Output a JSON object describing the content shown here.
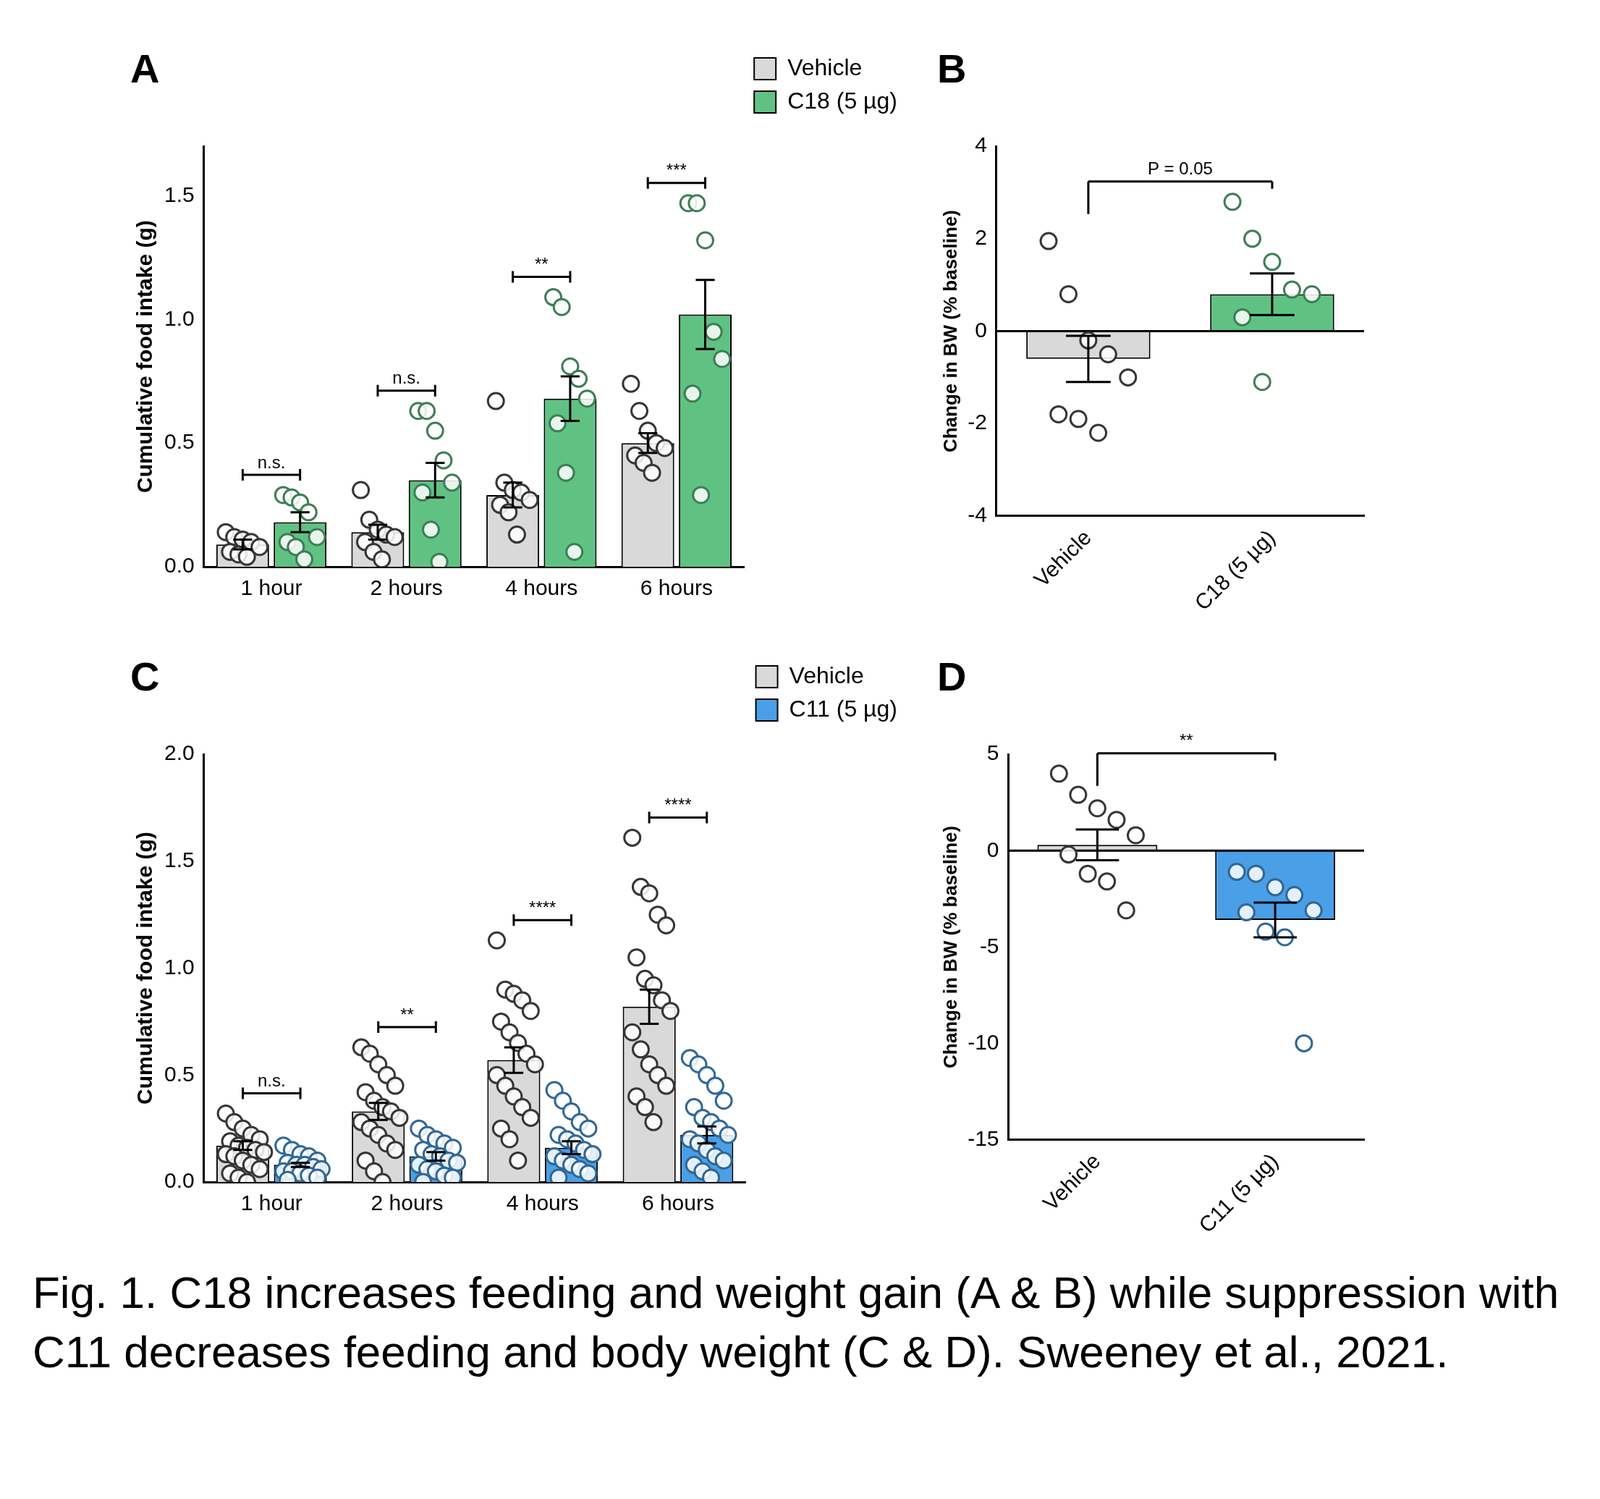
{
  "chart_data": [
    {
      "type": "bar",
      "title": "A",
      "ylabel": "Cumulative food intake (g)",
      "categories": [
        "1 hour",
        "2 hours",
        "4 hours",
        "6 hours"
      ],
      "series": [
        {
          "name": "Vehicle",
          "color": "#d9d9d9",
          "values": [
            0.09,
            0.14,
            0.29,
            0.5
          ],
          "errors": [
            0.02,
            0.03,
            0.05,
            0.04
          ],
          "points": [
            [
              0.14,
              0.12,
              0.11,
              0.1,
              0.08,
              0.06,
              0.05,
              0.04
            ],
            [
              0.31,
              0.19,
              0.15,
              0.13,
              0.12,
              0.1,
              0.06,
              0.03
            ],
            [
              0.67,
              0.34,
              0.31,
              0.3,
              0.27,
              0.25,
              0.22,
              0.13
            ],
            [
              0.74,
              0.63,
              0.55,
              0.5,
              0.48,
              0.45,
              0.42,
              0.38
            ]
          ]
        },
        {
          "name": "C18 (5 µg)",
          "color": "#5fc283",
          "values": [
            0.18,
            0.35,
            0.68,
            1.02
          ],
          "errors": [
            0.04,
            0.07,
            0.09,
            0.14
          ],
          "points": [
            [
              0.29,
              0.28,
              0.26,
              0.22,
              0.12,
              0.1,
              0.08,
              0.03
            ],
            [
              0.63,
              0.63,
              0.55,
              0.43,
              0.34,
              0.3,
              0.15,
              0.02
            ],
            [
              1.09,
              1.05,
              0.81,
              0.76,
              0.68,
              0.58,
              0.38,
              0.06
            ],
            [
              1.47,
              1.47,
              1.32,
              0.95,
              0.84,
              0.7,
              0.29
            ]
          ]
        }
      ],
      "ylim": [
        0,
        1.7
      ],
      "yticks": [
        {
          "value": 0,
          "label": "0.0"
        },
        0.5,
        {
          "value": 1,
          "label": "1.0"
        },
        1.5
      ],
      "grid": false,
      "legend": "top right",
      "annotations": [
        {
          "category": "1 hour",
          "text": "n.s."
        },
        {
          "category": "2 hours",
          "text": "n.s."
        },
        {
          "category": "4 hours",
          "text": "**"
        },
        {
          "category": "6 hours",
          "text": "***"
        }
      ]
    },
    {
      "type": "bar",
      "title": "B",
      "ylabel": "Change in BW (% baseline)",
      "categories": [
        "Vehicle",
        "C18 (5 µg)"
      ],
      "values": [
        -0.6,
        0.8
      ],
      "errors": [
        0.5,
        0.45
      ],
      "points": [
        [
          1.95,
          0.8,
          -0.2,
          -0.5,
          -1.0,
          -1.8,
          -1.9,
          -2.2
        ],
        [
          2.8,
          2.0,
          1.5,
          0.9,
          0.8,
          0.3,
          -1.1
        ]
      ],
      "colors": [
        "#d9d9d9",
        "#5fc283"
      ],
      "ylim": [
        -4,
        4
      ],
      "yticks": [
        -4,
        -2,
        0,
        2,
        4
      ],
      "grid": false,
      "annotations": [
        {
          "from": "Vehicle",
          "to": "C18 (5 µg)",
          "text": "P = 0.05"
        }
      ]
    },
    {
      "type": "bar",
      "title": "C",
      "ylabel": "Cumulative food intake (g)",
      "categories": [
        "1 hour",
        "2 hours",
        "4 hours",
        "6 hours"
      ],
      "series": [
        {
          "name": "Vehicle",
          "color": "#d9d9d9",
          "values": [
            0.17,
            0.33,
            0.57,
            0.82
          ],
          "errors": [
            0.02,
            0.04,
            0.06,
            0.08
          ],
          "points": [
            [
              0.32,
              0.28,
              0.25,
              0.22,
              0.2,
              0.19,
              0.17,
              0.16,
              0.15,
              0.14,
              0.13,
              0.12,
              0.1,
              0.08,
              0.06,
              0.04,
              0.02,
              0.0
            ],
            [
              0.63,
              0.6,
              0.55,
              0.5,
              0.45,
              0.42,
              0.38,
              0.35,
              0.33,
              0.3,
              0.28,
              0.25,
              0.22,
              0.18,
              0.15,
              0.1,
              0.05,
              0.0
            ],
            [
              1.13,
              0.9,
              0.88,
              0.85,
              0.8,
              0.75,
              0.7,
              0.65,
              0.6,
              0.55,
              0.5,
              0.45,
              0.4,
              0.35,
              0.3,
              0.25,
              0.2,
              0.1
            ],
            [
              1.61,
              1.38,
              1.35,
              1.25,
              1.2,
              1.05,
              0.95,
              0.92,
              0.85,
              0.8,
              0.7,
              0.62,
              0.55,
              0.5,
              0.45,
              0.4,
              0.35,
              0.28
            ]
          ]
        },
        {
          "name": "C11 (5 µg)",
          "color": "#4a9fe6",
          "values": [
            0.08,
            0.12,
            0.16,
            0.22
          ],
          "errors": [
            0.01,
            0.02,
            0.03,
            0.04
          ],
          "points": [
            [
              0.17,
              0.15,
              0.13,
              0.12,
              0.1,
              0.09,
              0.08,
              0.08,
              0.07,
              0.06,
              0.05,
              0.05,
              0.04,
              0.03,
              0.02,
              0.01
            ],
            [
              0.25,
              0.22,
              0.2,
              0.18,
              0.16,
              0.15,
              0.13,
              0.12,
              0.1,
              0.09,
              0.08,
              0.06,
              0.05,
              0.03,
              0.02,
              0.0
            ],
            [
              0.43,
              0.38,
              0.33,
              0.28,
              0.25,
              0.22,
              0.2,
              0.18,
              0.15,
              0.13,
              0.12,
              0.1,
              0.08,
              0.06,
              0.04,
              0.02
            ],
            [
              0.58,
              0.55,
              0.5,
              0.45,
              0.38,
              0.35,
              0.3,
              0.28,
              0.25,
              0.22,
              0.2,
              0.18,
              0.15,
              0.12,
              0.1,
              0.08,
              0.05,
              0.02
            ]
          ]
        }
      ],
      "ylim": [
        0,
        2
      ],
      "yticks": [
        {
          "value": 0,
          "label": "0.0"
        },
        0.5,
        {
          "value": 1,
          "label": "1.0"
        },
        1.5,
        {
          "value": 2,
          "label": "2.0"
        }
      ],
      "grid": false,
      "legend": "top right",
      "annotations": [
        {
          "category": "1 hour",
          "text": "n.s."
        },
        {
          "category": "2 hours",
          "text": "**"
        },
        {
          "category": "4 hours",
          "text": "****"
        },
        {
          "category": "6 hours",
          "text": "****"
        }
      ]
    },
    {
      "type": "bar",
      "title": "D",
      "ylabel": "Change in BW (% baseline)",
      "categories": [
        "Vehicle",
        "C11 (5 µg)"
      ],
      "values": [
        0.3,
        -3.6
      ],
      "errors": [
        0.8,
        0.9
      ],
      "points": [
        [
          4.0,
          2.9,
          2.2,
          1.6,
          0.8,
          -0.2,
          -1.2,
          -1.6,
          -3.1
        ],
        [
          -1.1,
          -1.2,
          -1.9,
          -2.3,
          -3.1,
          -3.2,
          -4.2,
          -4.5,
          -10.0
        ]
      ],
      "colors": [
        "#d9d9d9",
        "#4a9fe6"
      ],
      "ylim": [
        -15,
        5
      ],
      "yticks": [
        -15,
        -10,
        -5,
        0,
        5
      ],
      "grid": false,
      "annotations": [
        {
          "from": "Vehicle",
          "to": "C11 (5 µg)",
          "text": "**"
        }
      ]
    }
  ],
  "caption": "Fig. 1. C18 increases feeding and weight gain (A & B) while suppression with C11 decreases feeding and body weight (C & D). Sweeney et al., 2021."
}
